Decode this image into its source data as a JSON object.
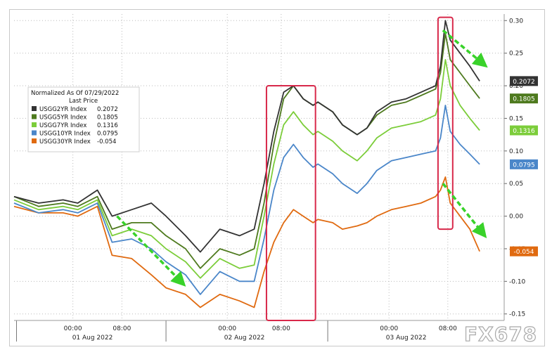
{
  "chart_data": {
    "type": "line",
    "legend": {
      "title": "Normalized As Of 07/29/2022",
      "subtitle": "Last Price",
      "placement": "top-left"
    },
    "ylim": [
      -0.16,
      0.31
    ],
    "yticks": [
      "0.30",
      "0.25",
      "0.20",
      "0.15",
      "0.10",
      "0.05",
      "0.00",
      "-0.05",
      "-0.10",
      "-0.15"
    ],
    "ytick_values": [
      0.3,
      0.25,
      0.2,
      0.15,
      0.1,
      0.05,
      0.0,
      -0.05,
      -0.1,
      -0.15
    ],
    "xlim": [
      0,
      100
    ],
    "x_ticks": [
      {
        "x": 12.0,
        "label": "00:00"
      },
      {
        "x": 22.0,
        "label": "08:00"
      },
      {
        "x": 43.5,
        "label": "00:00"
      },
      {
        "x": 54.5,
        "label": "08:00"
      },
      {
        "x": 76.5,
        "label": "00:00"
      },
      {
        "x": 88.5,
        "label": "08:00"
      }
    ],
    "day_labels": [
      {
        "x": 16.0,
        "label": "01 Aug 2022"
      },
      {
        "x": 47.0,
        "label": "02 Aug 2022"
      },
      {
        "x": 80.0,
        "label": "03 Aug 2022"
      }
    ],
    "day_boundaries": [
      0.5,
      31.0,
      64.0
    ],
    "grid": true,
    "x": [
      0,
      5,
      10,
      13,
      17,
      20,
      24,
      28,
      31,
      35,
      38,
      42,
      46,
      49,
      51,
      53,
      55,
      57,
      59,
      61,
      62,
      65,
      67,
      70,
      72,
      74,
      77,
      80,
      83,
      86,
      87,
      88,
      89,
      91,
      93,
      95
    ],
    "series": [
      {
        "name": "USGG2YR Index",
        "last": "0.2072",
        "last_value": 0.2072,
        "color": "#333333",
        "values": [
          0.03,
          0.02,
          0.025,
          0.02,
          0.04,
          0.0,
          0.01,
          0.02,
          0.0,
          -0.03,
          -0.055,
          -0.02,
          -0.03,
          -0.02,
          0.05,
          0.13,
          0.19,
          0.2,
          0.18,
          0.17,
          0.175,
          0.16,
          0.14,
          0.125,
          0.135,
          0.16,
          0.175,
          0.18,
          0.19,
          0.2,
          0.23,
          0.3,
          0.27,
          0.25,
          0.23,
          0.2072
        ]
      },
      {
        "name": "USGG5YR Index",
        "last": "0.1805",
        "last_value": 0.1805,
        "color": "#4e7a1e",
        "values": [
          0.03,
          0.015,
          0.02,
          0.015,
          0.03,
          -0.02,
          -0.01,
          -0.01,
          -0.03,
          -0.05,
          -0.08,
          -0.05,
          -0.06,
          -0.05,
          0.02,
          0.11,
          0.18,
          0.2,
          0.18,
          0.17,
          0.175,
          0.16,
          0.14,
          0.125,
          0.135,
          0.155,
          0.17,
          0.175,
          0.185,
          0.195,
          0.22,
          0.28,
          0.24,
          0.22,
          0.2,
          0.1805
        ]
      },
      {
        "name": "USGG7YR Index",
        "last": "0.1316",
        "last_value": 0.1316,
        "color": "#7ccd3a",
        "values": [
          0.025,
          0.01,
          0.015,
          0.01,
          0.025,
          -0.03,
          -0.02,
          -0.03,
          -0.05,
          -0.07,
          -0.095,
          -0.065,
          -0.08,
          -0.075,
          0.0,
          0.08,
          0.14,
          0.16,
          0.14,
          0.125,
          0.13,
          0.115,
          0.1,
          0.085,
          0.1,
          0.12,
          0.135,
          0.14,
          0.145,
          0.155,
          0.18,
          0.24,
          0.2,
          0.17,
          0.15,
          0.1316
        ]
      },
      {
        "name": "USGG10YR Index",
        "last": "0.0795",
        "last_value": 0.0795,
        "color": "#4a86c9",
        "values": [
          0.02,
          0.005,
          0.01,
          0.005,
          0.02,
          -0.04,
          -0.035,
          -0.05,
          -0.07,
          -0.09,
          -0.12,
          -0.085,
          -0.1,
          -0.1,
          -0.035,
          0.04,
          0.09,
          0.11,
          0.09,
          0.075,
          0.08,
          0.065,
          0.05,
          0.035,
          0.05,
          0.07,
          0.085,
          0.09,
          0.095,
          0.1,
          0.12,
          0.17,
          0.13,
          0.11,
          0.095,
          0.0795
        ]
      },
      {
        "name": "USGG30YR Index",
        "last": "-0.054",
        "last_value": -0.054,
        "color": "#e06a10",
        "values": [
          0.015,
          0.005,
          0.005,
          0.0,
          0.015,
          -0.06,
          -0.065,
          -0.09,
          -0.11,
          -0.12,
          -0.14,
          -0.12,
          -0.13,
          -0.14,
          -0.085,
          -0.04,
          -0.01,
          0.01,
          0.0,
          -0.01,
          -0.005,
          -0.01,
          -0.02,
          -0.015,
          -0.01,
          0.0,
          0.01,
          0.015,
          0.02,
          0.03,
          0.04,
          0.06,
          0.02,
          0.0,
          -0.02,
          -0.054
        ]
      }
    ],
    "highlight_boxes": [
      {
        "x0": 51.5,
        "x1": 61.5,
        "y0": -0.16,
        "y1": 0.2
      },
      {
        "x0": 86.5,
        "x1": 89.5,
        "y0": -0.02,
        "y1": 0.305
      }
    ],
    "trend_arrows": [
      {
        "x0": 21,
        "y0": 0.0,
        "x1": 34,
        "y1": -0.1
      },
      {
        "x0": 87.5,
        "y0": 0.285,
        "x1": 95.5,
        "y1": 0.235
      },
      {
        "x0": 87.5,
        "y0": 0.05,
        "x1": 95.5,
        "y1": -0.025
      }
    ],
    "watermark": "FX678"
  }
}
